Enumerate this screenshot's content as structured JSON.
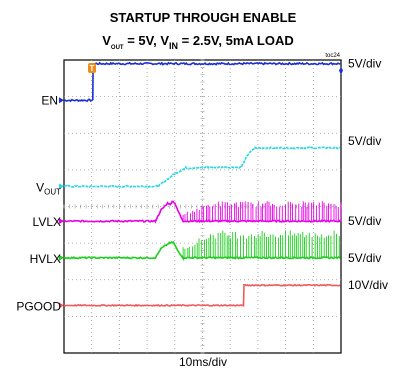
{
  "chart_data": {
    "type": "line",
    "title": "STARTUP THROUGH ENABLE",
    "subtitle": {
      "vout": "V",
      "vout_sub": "OUT",
      "vout_rest": " = 5V, ",
      "vin": "V",
      "vin_sub": "IN",
      "vin_rest": " = 2.5V, 5mA LOAD"
    },
    "figure_id": "toc24",
    "xlabel": "10ms/div",
    "x_divisions": 10,
    "y_divisions": 8,
    "grid": true,
    "trigger_marker": "T",
    "channels": [
      {
        "name": "EN",
        "scale": "5V/div",
        "color": "#1a2fd0",
        "ground_div": 6.9,
        "noise": 0.05,
        "points": [
          [
            0,
            0
          ],
          [
            1.05,
            0
          ],
          [
            1.05,
            1
          ],
          [
            10,
            1
          ]
        ]
      },
      {
        "name": "V",
        "name_sub": "OUT",
        "scale": "5V/div",
        "color": "#27d6e6",
        "ground_div": 4.55,
        "noise": 0.04,
        "points": [
          [
            0,
            0
          ],
          [
            3.4,
            0
          ],
          [
            3.6,
            0.12
          ],
          [
            4.0,
            0.35
          ],
          [
            4.4,
            0.5
          ],
          [
            5.2,
            0.52
          ],
          [
            6.4,
            0.52
          ],
          [
            6.65,
            0.88
          ],
          [
            6.9,
            1.05
          ],
          [
            10,
            1.05
          ]
        ]
      },
      {
        "name": "LVLX",
        "scale": "5V/div",
        "color": "#e800e8",
        "ground_div": 3.6,
        "noise": 0.04,
        "switch_start": 4.3,
        "switch_end": 10,
        "switch_amp": 0.55,
        "points": [
          [
            0,
            0
          ],
          [
            3.3,
            0
          ],
          [
            3.5,
            0.3
          ],
          [
            3.75,
            0.5
          ],
          [
            3.85,
            0.45
          ],
          [
            3.9,
            0.55
          ],
          [
            4.0,
            0.5
          ],
          [
            4.1,
            0.3
          ],
          [
            4.3,
            0
          ],
          [
            10,
            0
          ]
        ]
      },
      {
        "name": "HVLX",
        "scale": "5V/div",
        "color": "#1ccf1c",
        "ground_div": 2.6,
        "noise": 0.04,
        "switch_start": 4.3,
        "switch_end": 10,
        "switch_amp": 0.75,
        "points": [
          [
            0,
            0
          ],
          [
            3.3,
            0
          ],
          [
            3.5,
            0.25
          ],
          [
            3.8,
            0.4
          ],
          [
            3.95,
            0.42
          ],
          [
            4.1,
            0.2
          ],
          [
            4.3,
            0
          ],
          [
            10,
            0
          ]
        ]
      },
      {
        "name": "PGOOD",
        "scale": "10V/div",
        "color": "#f05a5a",
        "ground_div": 1.3,
        "noise": 0.03,
        "points": [
          [
            0,
            0
          ],
          [
            6.5,
            0
          ],
          [
            6.5,
            0.55
          ],
          [
            10,
            0.55
          ]
        ]
      }
    ]
  }
}
